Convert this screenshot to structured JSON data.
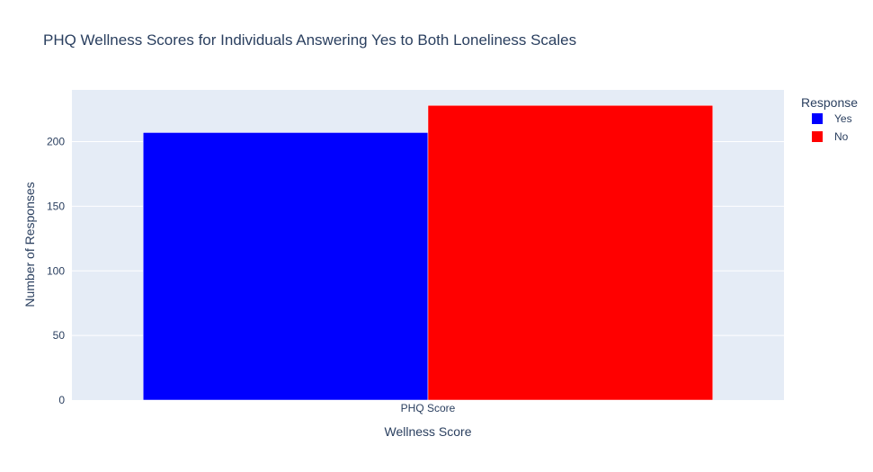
{
  "chart_data": {
    "type": "bar",
    "title": "PHQ Wellness Scores for Individuals Answering Yes to Both Loneliness Scales",
    "xlabel": "Wellness Score",
    "ylabel": "Number of Responses",
    "categories": [
      "PHQ Score"
    ],
    "series": [
      {
        "name": "Yes",
        "values": [
          207
        ],
        "color": "#0000ff"
      },
      {
        "name": "No",
        "values": [
          228
        ],
        "color": "#ff0000"
      }
    ],
    "ylim": [
      0,
      240
    ],
    "yticks": [
      0,
      50,
      100,
      150,
      200
    ],
    "grid": true,
    "legend": {
      "title": "Response",
      "placement": "top-right"
    },
    "plot_background": "#e5ecf6"
  }
}
